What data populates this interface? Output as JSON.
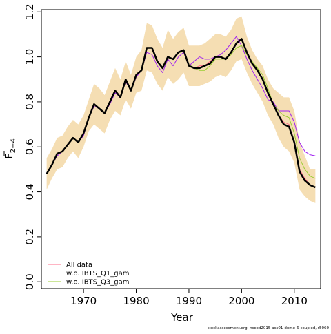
{
  "chart_data": {
    "type": "line",
    "xlabel": "Year",
    "ylabel": {
      "main": "F",
      "subscript": "2−4"
    },
    "xlim": [
      1962,
      2015
    ],
    "ylim": [
      -0.03,
      1.21
    ],
    "xticks": [
      1970,
      1980,
      1990,
      2000,
      2010
    ],
    "yticks": [
      0.0,
      0.2,
      0.4,
      0.6,
      0.8,
      1.0,
      1.2
    ],
    "ytick_labels": [
      "0.0",
      "0.2",
      "0.4",
      "0.6",
      "0.8",
      "1.0",
      "1.2"
    ],
    "x": [
      1963,
      1964,
      1965,
      1966,
      1967,
      1968,
      1969,
      1970,
      1971,
      1972,
      1973,
      1974,
      1975,
      1976,
      1977,
      1978,
      1979,
      1980,
      1981,
      1982,
      1983,
      1984,
      1985,
      1986,
      1987,
      1988,
      1989,
      1990,
      1991,
      1992,
      1993,
      1994,
      1995,
      1996,
      1997,
      1998,
      1999,
      2000,
      2001,
      2002,
      2003,
      2004,
      2005,
      2006,
      2007,
      2008,
      2009,
      2010,
      2011,
      2012,
      2013,
      2014
    ],
    "confidence_band": {
      "color": "#f5deb3",
      "upper": [
        0.55,
        0.59,
        0.64,
        0.65,
        0.69,
        0.72,
        0.7,
        0.74,
        0.81,
        0.88,
        0.86,
        0.83,
        0.89,
        0.95,
        0.9,
        0.98,
        0.92,
        1.0,
        1.03,
        1.15,
        1.14,
        1.08,
        1.04,
        1.12,
        1.08,
        1.11,
        1.13,
        1.05,
        1.05,
        1.05,
        1.06,
        1.08,
        1.1,
        1.1,
        1.09,
        1.12,
        1.17,
        1.18,
        1.09,
        1.03,
        0.99,
        0.96,
        0.9,
        0.86,
        0.84,
        0.82,
        0.82,
        0.76,
        0.62,
        0.56,
        0.5,
        0.5
      ],
      "lower": [
        0.41,
        0.46,
        0.5,
        0.51,
        0.55,
        0.58,
        0.55,
        0.6,
        0.67,
        0.7,
        0.68,
        0.66,
        0.72,
        0.76,
        0.74,
        0.81,
        0.77,
        0.84,
        0.85,
        0.94,
        0.93,
        0.88,
        0.85,
        0.91,
        0.88,
        0.9,
        0.93,
        0.87,
        0.87,
        0.87,
        0.88,
        0.89,
        0.91,
        0.92,
        0.91,
        0.94,
        0.98,
        0.99,
        0.93,
        0.88,
        0.84,
        0.8,
        0.74,
        0.7,
        0.64,
        0.6,
        0.58,
        0.53,
        0.41,
        0.38,
        0.36,
        0.35
      ]
    },
    "series": [
      {
        "name": "All data",
        "color": "#ff6b8a",
        "width": 1,
        "values": [
          0.48,
          0.52,
          0.57,
          0.58,
          0.61,
          0.64,
          0.62,
          0.66,
          0.73,
          0.79,
          0.77,
          0.75,
          0.8,
          0.85,
          0.82,
          0.9,
          0.85,
          0.92,
          0.94,
          1.04,
          1.04,
          0.98,
          0.95,
          1.0,
          0.99,
          1.02,
          1.03,
          0.96,
          0.95,
          0.96,
          0.96,
          0.98,
          1.0,
          1.0,
          0.99,
          1.02,
          1.06,
          1.08,
          1.02,
          0.97,
          0.94,
          0.9,
          0.84,
          0.79,
          0.74,
          0.71,
          0.7,
          0.62,
          0.5,
          0.46,
          0.43,
          0.42
        ]
      },
      {
        "name": "w.o. IBTS_Q1_gam",
        "color": "#a020f0",
        "width": 1,
        "values": [
          0.48,
          0.52,
          0.56,
          0.58,
          0.61,
          0.64,
          0.62,
          0.65,
          0.73,
          0.78,
          0.77,
          0.75,
          0.79,
          0.84,
          0.82,
          0.89,
          0.85,
          0.91,
          0.94,
          1.02,
          1.01,
          0.96,
          0.93,
          0.99,
          0.96,
          1.0,
          1.02,
          0.96,
          0.98,
          1.0,
          0.99,
          0.99,
          1.0,
          1.01,
          1.03,
          1.06,
          1.09,
          1.05,
          0.99,
          0.94,
          0.9,
          0.86,
          0.81,
          0.8,
          0.76,
          0.76,
          0.76,
          0.71,
          0.62,
          0.58,
          0.565,
          0.56
        ]
      },
      {
        "name": "w.o. IBTS_Q3_gam",
        "color": "#9acd32",
        "width": 1,
        "values": [
          0.48,
          0.52,
          0.57,
          0.58,
          0.61,
          0.64,
          0.62,
          0.66,
          0.73,
          0.79,
          0.77,
          0.75,
          0.8,
          0.85,
          0.82,
          0.9,
          0.85,
          0.92,
          0.94,
          1.04,
          1.04,
          0.98,
          0.95,
          1.0,
          0.99,
          1.02,
          1.03,
          0.96,
          0.95,
          0.94,
          0.94,
          0.96,
          0.99,
          0.99,
          0.99,
          1.01,
          1.04,
          1.05,
          1.01,
          0.98,
          0.95,
          0.92,
          0.86,
          0.79,
          0.76,
          0.74,
          0.73,
          0.66,
          0.55,
          0.5,
          0.47,
          0.46
        ]
      },
      {
        "name": "",
        "color": "#000000",
        "width": 2.5,
        "values": [
          0.48,
          0.52,
          0.57,
          0.58,
          0.61,
          0.64,
          0.62,
          0.66,
          0.73,
          0.79,
          0.77,
          0.75,
          0.8,
          0.85,
          0.82,
          0.9,
          0.85,
          0.92,
          0.94,
          1.04,
          1.04,
          0.98,
          0.95,
          1.0,
          0.99,
          1.02,
          1.03,
          0.96,
          0.95,
          0.95,
          0.96,
          0.97,
          1.0,
          1.0,
          0.99,
          1.02,
          1.06,
          1.08,
          1.02,
          0.97,
          0.94,
          0.9,
          0.84,
          0.79,
          0.74,
          0.7,
          0.69,
          0.62,
          0.49,
          0.45,
          0.43,
          0.42
        ]
      }
    ],
    "legend": {
      "position": "bottom-left",
      "entries": [
        {
          "label": "All data",
          "color": "#ff6b8a"
        },
        {
          "label": "w.o. IBTS_Q1_gam",
          "color": "#a020f0"
        },
        {
          "label": "w.o. IBTS_Q3_gam",
          "color": "#9acd32"
        }
      ]
    },
    "grid": false,
    "credit": "stockassessment.org, nscod2015-ass01-dome-6-coupled, r5060"
  }
}
